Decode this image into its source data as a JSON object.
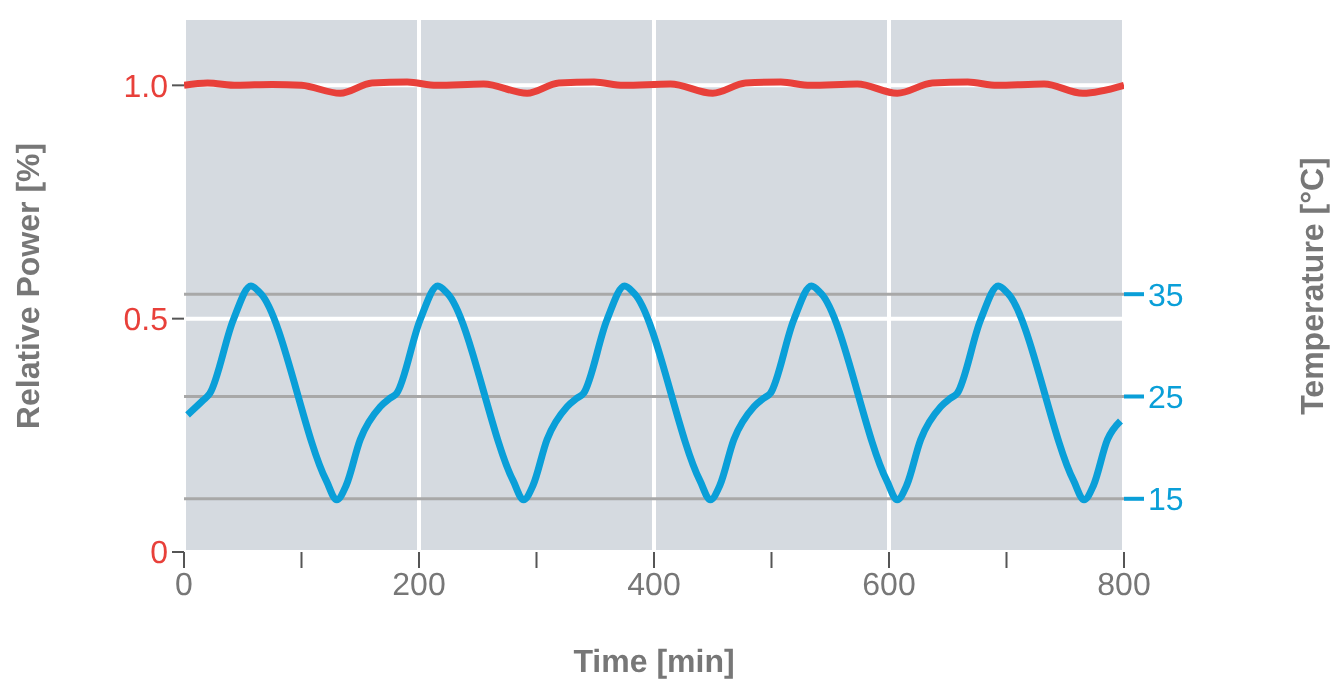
{
  "chart_data": {
    "type": "line",
    "xlabel": "Time [min]",
    "ylabel": "Relative Power [%]",
    "y2label": "Temperature [°C]",
    "xlim": [
      0,
      800
    ],
    "xticks": [
      0,
      {
        "value": 100,
        "label": null
      },
      200,
      {
        "value": 300,
        "label": null
      },
      400,
      {
        "value": 500,
        "label": null
      },
      600,
      {
        "value": 700,
        "label": null
      },
      800
    ],
    "ylim": [
      0,
      1.14
    ],
    "yticks": [
      0,
      0.5,
      {
        "value": 1,
        "label": "1.0"
      }
    ],
    "y2lim": [
      9.8,
      61.8
    ],
    "y2ticks": [
      15,
      25,
      35
    ],
    "grid": true,
    "legend": false,
    "marker": "none",
    "line_style": "solid",
    "series": [
      {
        "color": "#e8403a",
        "x": [
          0,
          20,
          45,
          75,
          100,
          133,
          160,
          190,
          215,
          255,
          292,
          319,
          349,
          374,
          414,
          450,
          478,
          508,
          533,
          573,
          607,
          637,
          667,
          692,
          732,
          765,
          800
        ],
        "values": [
          1.0,
          1.005,
          1.0,
          1.002,
          1.0,
          0.983,
          1.005,
          1.007,
          1.0,
          1.003,
          0.983,
          1.005,
          1.007,
          1.0,
          1.003,
          0.983,
          1.005,
          1.007,
          1.0,
          1.003,
          0.983,
          1.005,
          1.007,
          1.0,
          1.003,
          0.983,
          1.0
        ]
      },
      {
        "color": "#0a9fd8",
        "axis": "y2",
        "x": [
          3,
          16,
          22,
          42,
          57,
          65,
          121,
          130,
          138,
          150,
          167,
          175,
          181,
          201,
          216,
          224,
          280,
          289,
          297,
          309,
          326,
          334,
          340,
          360,
          375,
          383,
          439,
          448,
          456,
          468,
          485,
          493,
          499,
          519,
          534,
          542,
          598,
          607,
          615,
          627,
          644,
          652,
          658,
          678,
          693,
          701,
          757,
          766,
          774,
          786,
          797
        ],
        "values": [
          23.2,
          24.6,
          25.3,
          32.5,
          35.8,
          35.1,
          16.8,
          14.9,
          16.3,
          20.8,
          24.0,
          24.8,
          25.3,
          32.5,
          35.8,
          35.1,
          16.8,
          14.9,
          16.3,
          20.8,
          24.0,
          24.8,
          25.3,
          32.5,
          35.8,
          35.1,
          16.8,
          14.9,
          16.3,
          20.8,
          24.0,
          24.8,
          25.3,
          32.5,
          35.8,
          35.1,
          16.8,
          14.9,
          16.3,
          20.8,
          24.0,
          24.8,
          25.3,
          32.5,
          35.8,
          35.1,
          16.8,
          14.9,
          16.3,
          20.8,
          22.6
        ]
      }
    ]
  }
}
